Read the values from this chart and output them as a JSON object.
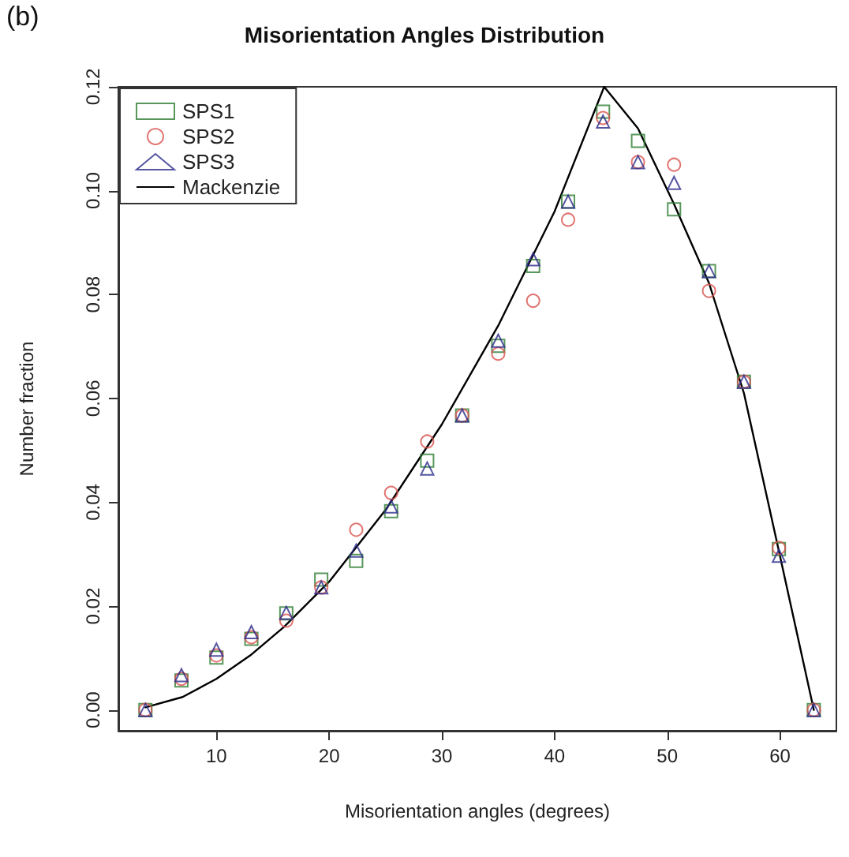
{
  "chart_data": {
    "type": "scatter",
    "title": "Misorientation Angles Distribution",
    "xlabel": "Misorientation angles (degrees)",
    "ylabel": "Number fraction",
    "annotations": [
      "(b)"
    ],
    "x": [
      3.7,
      6.9,
      10.0,
      13.1,
      16.2,
      19.3,
      22.4,
      25.5,
      28.7,
      31.8,
      35.0,
      38.1,
      41.2,
      44.3,
      47.4,
      50.6,
      53.7,
      56.8,
      59.9,
      63.0
    ],
    "series": [
      {
        "name": "SPS1",
        "color": "#2e7d32",
        "marker": "square",
        "values": [
          0,
          0.0057,
          0.0101,
          0.0137,
          0.0186,
          0.0251,
          0.0287,
          0.0383,
          0.048,
          0.0567,
          0.0701,
          0.0855,
          0.0979,
          0.1152,
          0.1096,
          0.0964,
          0.0845,
          0.0632,
          0.031,
          0
        ]
      },
      {
        "name": "SPS2",
        "color": "#d9534f",
        "marker": "circle",
        "values": [
          0,
          0.006,
          0.0105,
          0.014,
          0.0172,
          0.0236,
          0.0347,
          0.0418,
          0.0517,
          0.0567,
          0.0686,
          0.0788,
          0.0944,
          0.114,
          0.1055,
          0.105,
          0.0807,
          0.0632,
          0.0312,
          0
        ]
      },
      {
        "name": "SPS3",
        "color": "#2a2a8a",
        "marker": "triangle",
        "values": [
          0,
          0.0067,
          0.0116,
          0.015,
          0.0187,
          0.0236,
          0.0307,
          0.0392,
          0.0465,
          0.0567,
          0.0711,
          0.0868,
          0.0979,
          0.1133,
          0.1055,
          0.1015,
          0.0845,
          0.0632,
          0.0297,
          0
        ]
      },
      {
        "name": "Mackenzie",
        "type": "line",
        "color": "#000000",
        "marker": "none",
        "line_style": "solid",
        "x": [
          3.7,
          7,
          10,
          13,
          16,
          20,
          25,
          30,
          35,
          40,
          44.4,
          47.4,
          50.6,
          53.7,
          56.8,
          59.9,
          63.0
        ],
        "values": [
          0.0005,
          0.0025,
          0.006,
          0.0105,
          0.016,
          0.0247,
          0.0385,
          0.055,
          0.074,
          0.096,
          0.12,
          0.112,
          0.0974,
          0.0822,
          0.061,
          0.0306,
          0
        ]
      }
    ],
    "xlim": [
      1.3,
      65
    ],
    "xticks": [
      10,
      20,
      30,
      40,
      50,
      60
    ],
    "ylim": [
      -0.004,
      0.12
    ],
    "yticks": [
      {
        "value": 0,
        "label": "0.00"
      },
      {
        "value": 0.02,
        "label": "0.02"
      },
      {
        "value": 0.04,
        "label": "0.04"
      },
      {
        "value": 0.06,
        "label": "0.06"
      },
      {
        "value": 0.08,
        "label": "0.08"
      },
      {
        "value": 0.1,
        "label": "0.10"
      },
      {
        "value": 0.12,
        "label": "0.12"
      }
    ],
    "legend": "top left",
    "grid": false
  }
}
